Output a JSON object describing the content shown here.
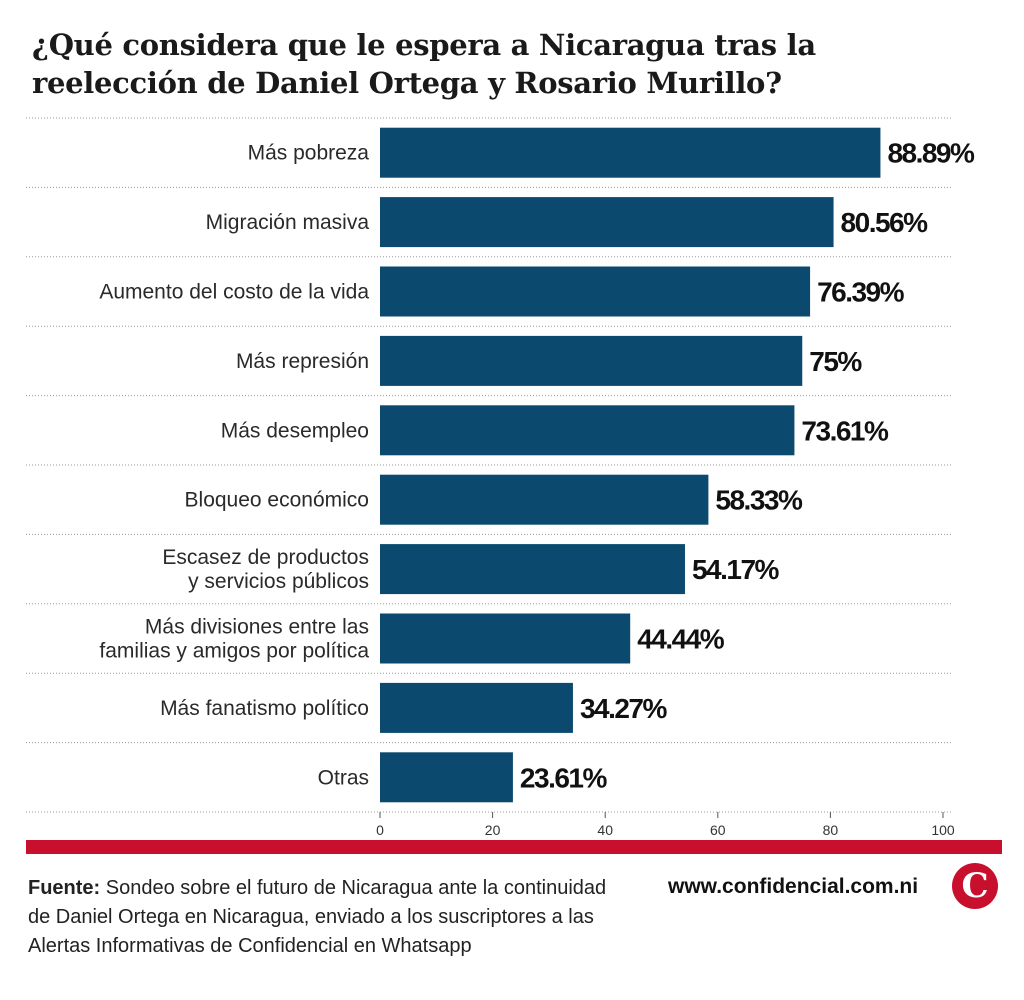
{
  "title": {
    "line1": "¿Qué considera que le espera a Nicaragua tras la",
    "line2": "reelección de Daniel Ortega y Rosario Murillo?"
  },
  "colors": {
    "bar": "#0b4a6e",
    "accent_red": "#c8102e",
    "grid": "#9a9a9a"
  },
  "chart_data": {
    "type": "bar",
    "orientation": "horizontal",
    "categories": [
      [
        "Más pobreza"
      ],
      [
        "Migración masiva"
      ],
      [
        "Aumento del costo de la vida"
      ],
      [
        "Más represión"
      ],
      [
        "Más desempleo"
      ],
      [
        "Bloqueo económico"
      ],
      [
        "Escasez de productos",
        "y servicios públicos"
      ],
      [
        "Más divisiones entre las",
        "familias y amigos por política"
      ],
      [
        "Más fanatismo político"
      ],
      [
        "Otras"
      ]
    ],
    "values": [
      88.89,
      80.56,
      76.39,
      75,
      73.61,
      58.33,
      54.17,
      44.44,
      34.27,
      23.61
    ],
    "value_labels": [
      "88.89%",
      "80.56%",
      "76.39%",
      "75%",
      "73.61%",
      "58.33%",
      "54.17%",
      "44.44%",
      "34.27%",
      "23.61%"
    ],
    "xlim": [
      0,
      100
    ],
    "xticks": [
      0,
      20,
      40,
      60,
      80,
      100
    ],
    "grid": "dotted separators between categories",
    "legend": "none"
  },
  "footer": {
    "source_label": "Fuente:",
    "source_text": " Sondeo sobre el futuro de Nicaragua ante la continuidad de Daniel Ortega en Nicaragua, enviado a los suscriptores a las Alertas Informativas de Confidencial en Whatsapp",
    "website": "www.confidencial.com.ni",
    "logo_letter": "C"
  }
}
